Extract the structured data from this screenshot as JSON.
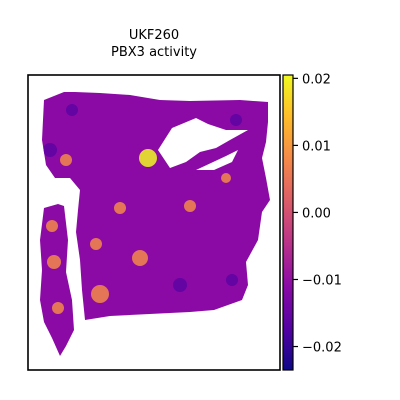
{
  "chart_data": {
    "type": "heatmap",
    "subtype": "spatial-hexbin",
    "title": [
      "UKF260",
      "PBX3 activity"
    ],
    "xlabel": "",
    "ylabel": "",
    "colormap": "plasma",
    "colorbar": {
      "ticks": [
        0.02,
        0.01,
        0.0,
        -0.01,
        -0.02
      ],
      "tick_labels": [
        "0.02",
        "0.01",
        "0.00",
        "−0.01",
        "−0.02"
      ],
      "range": [
        -0.0235,
        0.0205
      ]
    },
    "colors": {
      "low": "#0d0887",
      "mid": "#cc4778",
      "high": "#f0f921"
    },
    "grid": false,
    "hotspots": [
      {
        "name": "upper-center",
        "value": 0.021
      },
      {
        "name": "left-strip",
        "value": 0.006
      },
      {
        "name": "lower-left",
        "value": 0.008
      },
      {
        "name": "center",
        "value": 0.007
      }
    ]
  }
}
